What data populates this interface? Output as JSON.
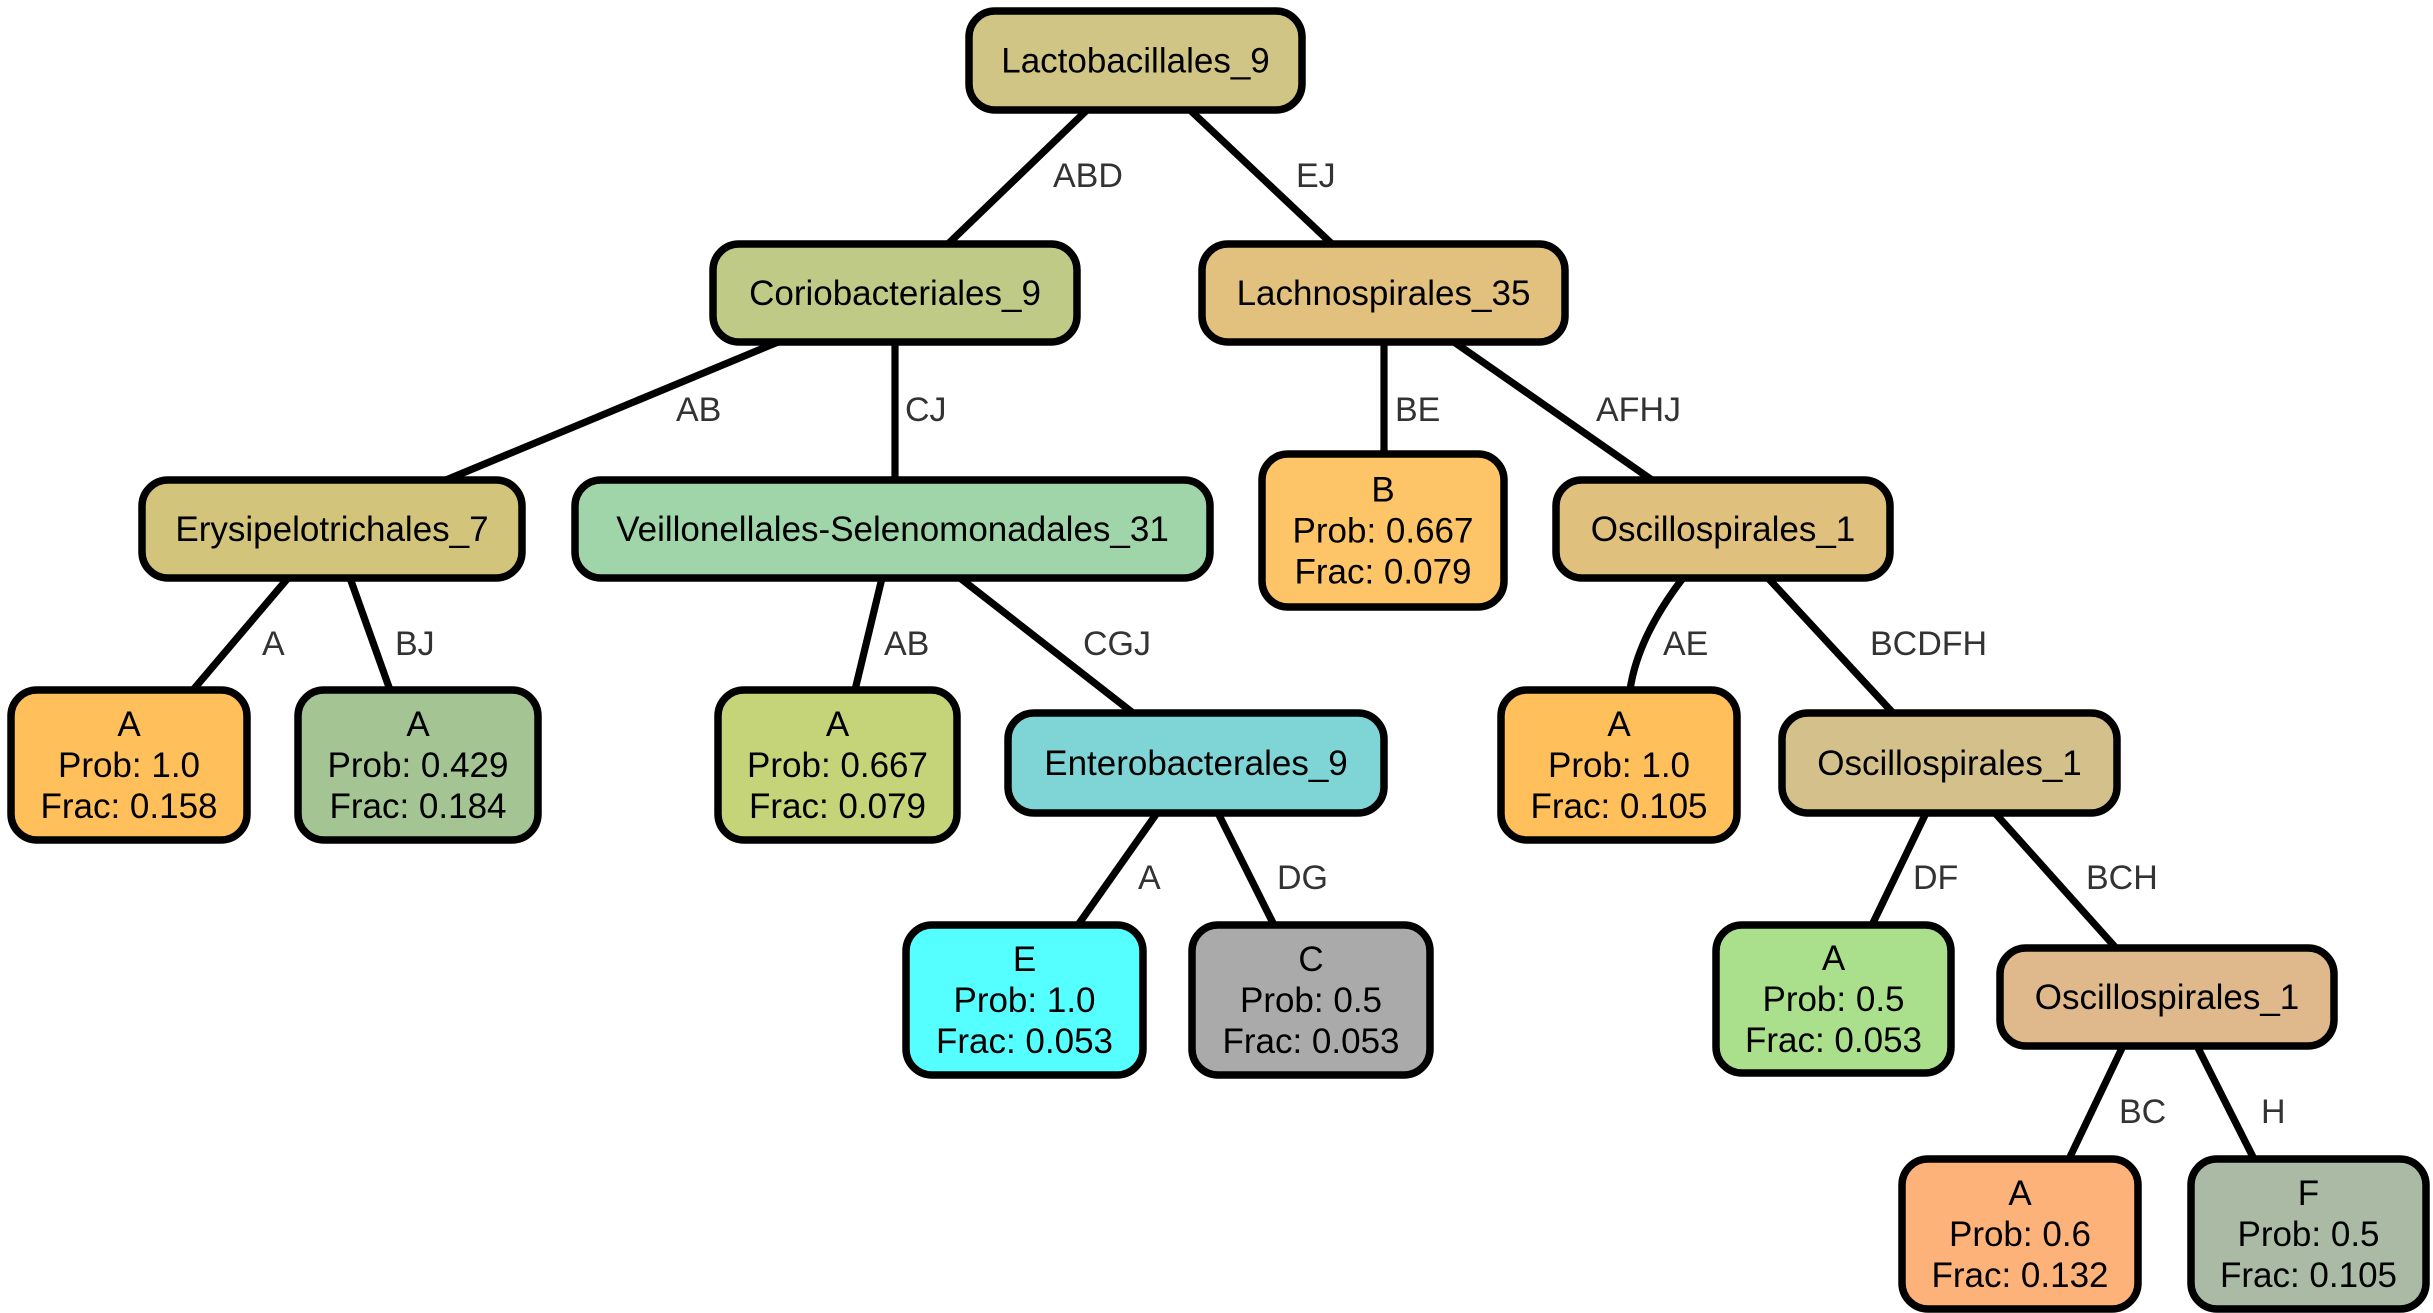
{
  "tree": {
    "nodes": [
      {
        "id": "n0",
        "lines": [
          "Lactobacillales_9"
        ],
        "color": "#d0c585"
      },
      {
        "id": "n1",
        "lines": [
          "Coriobacteriales_9"
        ],
        "color": "#bfca87"
      },
      {
        "id": "n2",
        "lines": [
          "Lachnospirales_35"
        ],
        "color": "#e2c17f"
      },
      {
        "id": "n3",
        "lines": [
          "Erysipelotrichales_7"
        ],
        "color": "#d2c47b"
      },
      {
        "id": "n4",
        "lines": [
          "Veillonellales-Selenomonadales_31"
        ],
        "color": "#9fd5a9"
      },
      {
        "id": "n5",
        "lines": [
          "B",
          "Prob: 0.667",
          "Frac: 0.079"
        ],
        "color": "#fec568"
      },
      {
        "id": "n6",
        "lines": [
          "Oscillospirales_1"
        ],
        "color": "#e0c07d"
      },
      {
        "id": "n7",
        "lines": [
          "A",
          "Prob: 1.0",
          "Frac: 0.158"
        ],
        "color": "#ffbf5a"
      },
      {
        "id": "n8",
        "lines": [
          "A",
          "Prob: 0.429",
          "Frac: 0.184"
        ],
        "color": "#a4c493"
      },
      {
        "id": "n9",
        "lines": [
          "A",
          "Prob: 0.667",
          "Frac: 0.079"
        ],
        "color": "#c5d379"
      },
      {
        "id": "n10",
        "lines": [
          "Enterobacterales_9"
        ],
        "color": "#7fd5d5"
      },
      {
        "id": "n11",
        "lines": [
          "A",
          "Prob: 1.0",
          "Frac: 0.105"
        ],
        "color": "#ffbf5a"
      },
      {
        "id": "n12",
        "lines": [
          "Oscillospirales_1"
        ],
        "color": "#d4c08b"
      },
      {
        "id": "n13",
        "lines": [
          "E",
          "Prob: 1.0",
          "Frac: 0.053"
        ],
        "color": "#55ffff"
      },
      {
        "id": "n14",
        "lines": [
          "C",
          "Prob: 0.5",
          "Frac: 0.053"
        ],
        "color": "#aaaaaa"
      },
      {
        "id": "n15",
        "lines": [
          "A",
          "Prob: 0.5",
          "Frac: 0.053"
        ],
        "color": "#aadf8c"
      },
      {
        "id": "n16",
        "lines": [
          "Oscillospirales_1"
        ],
        "color": "#dfb98b"
      },
      {
        "id": "n17",
        "lines": [
          "A",
          "Prob: 0.6",
          "Frac: 0.132"
        ],
        "color": "#fdb279"
      },
      {
        "id": "n18",
        "lines": [
          "F",
          "Prob: 0.5",
          "Frac: 0.105"
        ],
        "color": "#aabaa5"
      }
    ],
    "edges": [
      {
        "from": "n0",
        "to": "n1",
        "label": "ABD"
      },
      {
        "from": "n0",
        "to": "n2",
        "label": "EJ"
      },
      {
        "from": "n1",
        "to": "n3",
        "label": "AB"
      },
      {
        "from": "n1",
        "to": "n4",
        "label": "CJ"
      },
      {
        "from": "n2",
        "to": "n5",
        "label": "BE"
      },
      {
        "from": "n2",
        "to": "n6",
        "label": "AFHJ"
      },
      {
        "from": "n3",
        "to": "n7",
        "label": "A"
      },
      {
        "from": "n3",
        "to": "n8",
        "label": "BJ"
      },
      {
        "from": "n4",
        "to": "n9",
        "label": "AB"
      },
      {
        "from": "n4",
        "to": "n10",
        "label": "CGJ"
      },
      {
        "from": "n6",
        "to": "n11",
        "label": "AE"
      },
      {
        "from": "n6",
        "to": "n12",
        "label": "BCDFH"
      },
      {
        "from": "n10",
        "to": "n13",
        "label": "A"
      },
      {
        "from": "n10",
        "to": "n14",
        "label": "DG"
      },
      {
        "from": "n12",
        "to": "n15",
        "label": "DF"
      },
      {
        "from": "n12",
        "to": "n16",
        "label": "BCH"
      },
      {
        "from": "n16",
        "to": "n17",
        "label": "BC"
      },
      {
        "from": "n16",
        "to": "n18",
        "label": "H"
      }
    ]
  }
}
